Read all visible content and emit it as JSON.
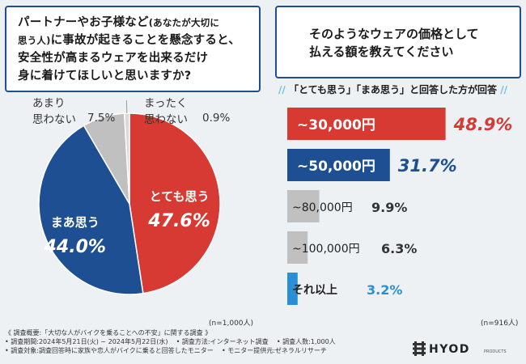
{
  "question1": {
    "line1a": "パートナーやお子様など",
    "line1b": "(あなたが大切に",
    "line2a": "思う人)",
    "line2b": "に事故が起きることを懸念すると、",
    "line3": "安全性が高まるウェアを出来るだけ",
    "line4": "身に着けてほしいと思いますか?"
  },
  "question2": {
    "line1": "そのようなウェアの価格として",
    "line2": "払える額を教えてください"
  },
  "note": {
    "left_slash": "//",
    "text": "「とても思う」「まあ思う」と回答した方が回答",
    "right_slash": "//"
  },
  "n_left": "(n=1,000人)",
  "n_right": "(n=916人)",
  "chart_data": [
    {
      "type": "pie",
      "categories": [
        "とても思う",
        "まあ思う",
        "あまり思わない",
        "まったく思わない"
      ],
      "values": [
        47.6,
        44.0,
        7.5,
        0.9
      ],
      "value_labels": [
        "47.6%",
        "44.0%",
        "7.5%",
        "0.9%"
      ],
      "colors": [
        "#d63a33",
        "#1e4f93",
        "#c0c0c0",
        "#d9d9d9"
      ],
      "label_lines": [
        [
          "とても思う"
        ],
        [
          "まあ思う"
        ],
        [
          "あまり",
          "思わない"
        ],
        [
          "まったく",
          "思わない"
        ]
      ]
    },
    {
      "type": "bar",
      "orientation": "horizontal",
      "categories": [
        "~30,000円",
        "~50,000円",
        "~80,000円",
        "~100,000円",
        "それ以上"
      ],
      "values": [
        48.9,
        31.7,
        9.9,
        6.3,
        3.2
      ],
      "value_labels": [
        "48.9%",
        "31.7%",
        "9.9%",
        "6.3%",
        "3.2%"
      ],
      "colors": [
        "#d63a33",
        "#1e4f93",
        "#c0c0c0",
        "#c0c0c0",
        "#2a8fd4"
      ],
      "xlim": [
        0,
        60
      ]
    }
  ],
  "survey": {
    "overview": "《 調査概要:「大切な人がバイクを乗ることへの不安」に関する調査 》",
    "period": "• 調査期間:2024年5月21日(火) ~ 2024年5月22日(水)",
    "method": "• 調査方法:インターネット調査",
    "count": "• 調査人数:1,000人",
    "target": "• 調査対象:調査回答時に家族や恋人がバイクに乗ると回答したモニター",
    "provider": "• モニター提供元:ゼネラルリサーチ"
  },
  "logo": {
    "brand": "HYOD",
    "sub": "PRODUCTS"
  }
}
